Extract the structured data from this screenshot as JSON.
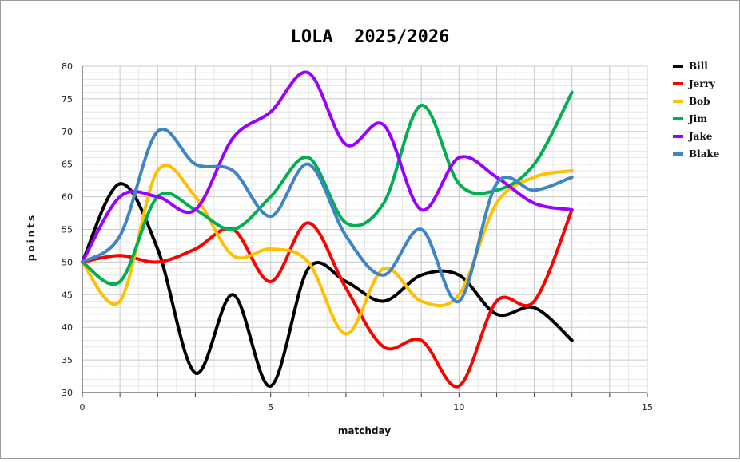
{
  "chart_data": {
    "type": "line",
    "title": "LOLA  2025/2026",
    "xlabel": "matchday",
    "ylabel": "points",
    "xlim": [
      0,
      15
    ],
    "ylim": [
      30,
      80
    ],
    "x_ticks": [
      0,
      5,
      10,
      15
    ],
    "y_ticks": [
      30,
      35,
      40,
      45,
      50,
      55,
      60,
      65,
      70,
      75,
      80
    ],
    "grid": true,
    "legend_position": "right",
    "x": [
      0,
      1,
      2,
      3,
      4,
      5,
      6,
      7,
      8,
      9,
      10,
      11,
      12,
      13
    ],
    "series": [
      {
        "name": "Bill",
        "color": "#000000",
        "values": [
          50,
          62,
          52,
          33,
          45,
          31,
          49,
          47,
          44,
          48,
          48,
          42,
          43,
          38
        ]
      },
      {
        "name": "Jerry",
        "color": "#ff0000",
        "values": [
          50,
          51,
          50,
          52,
          55,
          47,
          56,
          46,
          37,
          38,
          31,
          44,
          44,
          58
        ]
      },
      {
        "name": "Bob",
        "color": "#ffc000",
        "values": [
          50,
          44,
          64,
          60,
          51,
          52,
          50,
          39,
          49,
          44,
          45,
          59,
          63,
          64
        ]
      },
      {
        "name": "Jim",
        "color": "#00b050",
        "values": [
          50,
          47,
          60,
          58,
          55,
          60,
          66,
          56,
          59,
          74,
          62,
          61,
          65,
          76
        ]
      },
      {
        "name": "Jake",
        "color": "#9900ff",
        "values": [
          50,
          60,
          60,
          58,
          69,
          73,
          79,
          68,
          71,
          58,
          66,
          63,
          59,
          58
        ]
      },
      {
        "name": "Blake",
        "color": "#3d85c6",
        "values": [
          50,
          54,
          70,
          65,
          64,
          57,
          65,
          54,
          48,
          55,
          44,
          62,
          61,
          63
        ]
      }
    ]
  }
}
